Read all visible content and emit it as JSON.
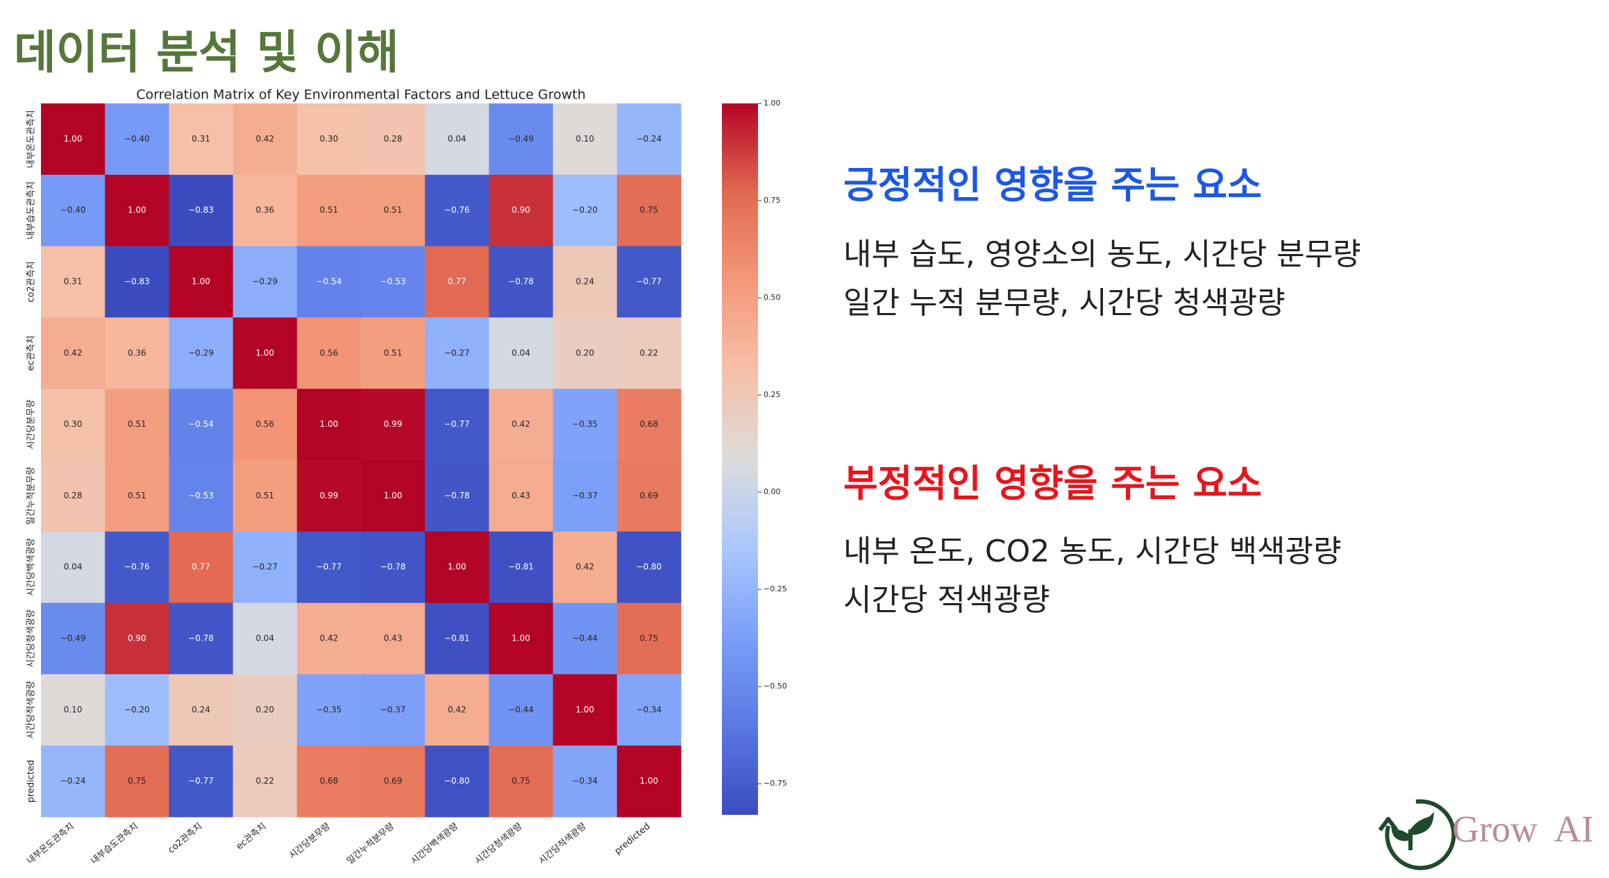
{
  "title": "데이터 분석 및 이해",
  "positive": {
    "heading": "긍정적인 영향을 주는 요소",
    "lines": [
      "내부 습도, 영양소의 농도, 시간당 분무량",
      "일간 누적 분무량, 시간당 청색광량"
    ]
  },
  "negative": {
    "heading": "부정적인 영향을 주는 요소",
    "lines": [
      "내부 온도, CO2 농도, 시간당 백색광량",
      "시간당 적색광량"
    ]
  },
  "logo": "Grow  AI",
  "chart_data": {
    "type": "heatmap",
    "title": "Correlation Matrix of Key Environmental Factors and Lettuce Growth",
    "categories": [
      "내부온도관측치",
      "내부습도관측치",
      "co2관측치",
      "ec관측치",
      "시간당분무량",
      "일간누적분무량",
      "시간당백색광량",
      "시간당청색광량",
      "시간당적색광량",
      "predicted"
    ],
    "values": [
      [
        1.0,
        -0.4,
        0.31,
        0.42,
        0.3,
        0.28,
        0.04,
        -0.49,
        0.1,
        -0.24
      ],
      [
        -0.4,
        1.0,
        -0.83,
        0.36,
        0.51,
        0.51,
        -0.76,
        0.9,
        -0.2,
        0.75
      ],
      [
        0.31,
        -0.83,
        1.0,
        -0.29,
        -0.54,
        -0.53,
        0.77,
        -0.78,
        0.24,
        -0.77
      ],
      [
        0.42,
        0.36,
        -0.29,
        1.0,
        0.56,
        0.51,
        -0.27,
        0.04,
        0.2,
        0.22
      ],
      [
        0.3,
        0.51,
        -0.54,
        0.56,
        1.0,
        0.99,
        -0.77,
        0.42,
        -0.35,
        0.68
      ],
      [
        0.28,
        0.51,
        -0.53,
        0.51,
        0.99,
        1.0,
        -0.78,
        0.43,
        -0.37,
        0.69
      ],
      [
        0.04,
        -0.76,
        0.77,
        -0.27,
        -0.77,
        -0.78,
        1.0,
        -0.81,
        0.42,
        -0.8
      ],
      [
        -0.49,
        0.9,
        -0.78,
        0.04,
        0.42,
        0.43,
        -0.81,
        1.0,
        -0.44,
        0.75
      ],
      [
        0.1,
        -0.2,
        0.24,
        0.2,
        -0.35,
        -0.37,
        0.42,
        -0.44,
        1.0,
        -0.34
      ],
      [
        -0.24,
        0.75,
        -0.77,
        0.22,
        0.68,
        0.69,
        -0.8,
        0.75,
        -0.34,
        1.0
      ]
    ],
    "value_labels": [
      [
        "1.00",
        "−0.40",
        "0.31",
        "0.42",
        "0.30",
        "0.28",
        "0.04",
        "−0.49",
        "0.10",
        "−0.24"
      ],
      [
        "−0.40",
        "1.00",
        "−0.83",
        "0.36",
        "0.51",
        "0.51",
        "−0.76",
        "0.90",
        "−0.20",
        "0.75"
      ],
      [
        "0.31",
        "−0.83",
        "1.00",
        "−0.29",
        "−0.54",
        "−0.53",
        "0.77",
        "−0.78",
        "0.24",
        "−0.77"
      ],
      [
        "0.42",
        "0.36",
        "−0.29",
        "1.00",
        "0.56",
        "0.51",
        "−0.27",
        "0.04",
        "0.20",
        "0.22"
      ],
      [
        "0.30",
        "0.51",
        "−0.54",
        "0.56",
        "1.00",
        "0.99",
        "−0.77",
        "0.42",
        "−0.35",
        "0.68"
      ],
      [
        "0.28",
        "0.51",
        "−0.53",
        "0.51",
        "0.99",
        "1.00",
        "−0.78",
        "0.43",
        "−0.37",
        "0.69"
      ],
      [
        "0.04",
        "−0.76",
        "0.77",
        "−0.27",
        "−0.77",
        "−0.78",
        "1.00",
        "−0.81",
        "0.42",
        "−0.80"
      ],
      [
        "−0.49",
        "0.90",
        "−0.78",
        "0.04",
        "0.42",
        "0.43",
        "−0.81",
        "1.00",
        "−0.44",
        "0.75"
      ],
      [
        "0.10",
        "−0.20",
        "0.24",
        "0.20",
        "−0.35",
        "−0.37",
        "0.42",
        "−0.44",
        "1.00",
        "−0.34"
      ],
      [
        "−0.24",
        "0.75",
        "−0.77",
        "0.22",
        "0.68",
        "0.69",
        "−0.80",
        "0.75",
        "−0.34",
        "1.00"
      ]
    ],
    "clim": [
      -0.83,
      1.0
    ],
    "cticks": [
      {
        "value": 1.0,
        "label": "1.00"
      },
      {
        "value": 0.75,
        "label": "0.75"
      },
      {
        "value": 0.5,
        "label": "0.50"
      },
      {
        "value": 0.25,
        "label": "0.25"
      },
      {
        "value": 0,
        "label": "0.00"
      },
      {
        "value": -0.25,
        "label": "−0.25"
      },
      {
        "value": -0.5,
        "label": "−0.50"
      },
      {
        "value": -0.75,
        "label": "−0.75"
      }
    ]
  }
}
